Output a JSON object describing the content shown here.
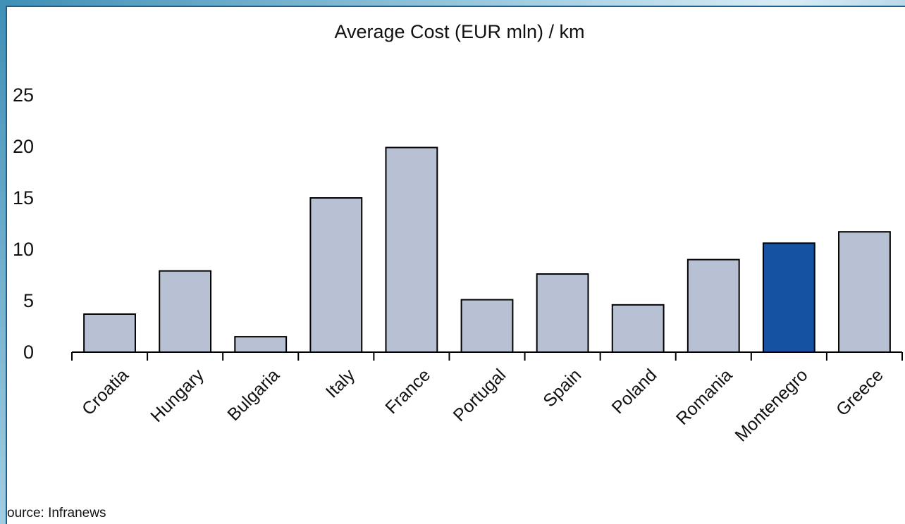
{
  "chart_data": {
    "type": "bar",
    "title": "Average Cost (EUR mln) / km",
    "xlabel": "",
    "ylabel": "",
    "ylim": [
      0,
      25
    ],
    "yticks": [
      0,
      5,
      10,
      15,
      20,
      25
    ],
    "categories": [
      "Croatia",
      "Hungary",
      "Bulgaria",
      "Italy",
      "France",
      "Portugal",
      "Spain",
      "Poland",
      "Romania",
      "Montenegro",
      "Greece"
    ],
    "values": [
      3.7,
      7.9,
      1.5,
      15.0,
      19.9,
      5.1,
      7.6,
      4.6,
      9.0,
      10.6,
      11.7
    ],
    "highlight_category": "Montenegro",
    "grid": false,
    "colors": {
      "bar": "#b7c1d3",
      "highlight": "#1552a0",
      "outline": "#000000"
    }
  },
  "source": "ource: Infranews"
}
